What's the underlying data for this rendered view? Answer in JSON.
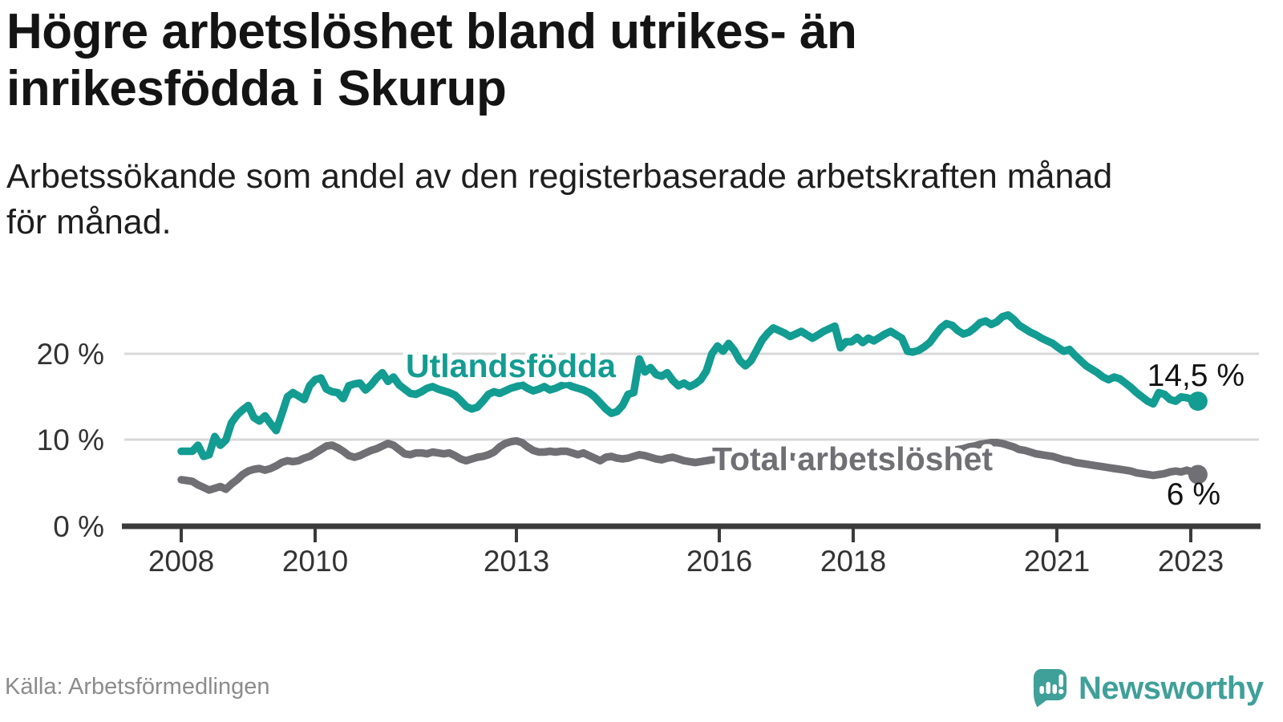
{
  "header": {
    "title_lines": [
      "Högre arbetslöshet bland utrikes- än",
      "inrikesfödda i Skurup"
    ],
    "subtitle_lines": [
      "Arbetssökande som andel av den registerbaserade arbetskraften månad",
      "för månad."
    ]
  },
  "footer": {
    "source": "Källa: Arbetsförmedlingen",
    "brand_name": "Newsworthy"
  },
  "colors": {
    "foreign_born_line": "#129c92",
    "total_line": "#6f6f74",
    "brand_teal": "#3fa099",
    "gridline": "#d8d8d8",
    "axis": "#3b3b3b"
  },
  "chart_data": {
    "type": "line",
    "title": "Högre arbetslöshet bland utrikes- än inrikesfödda i Skurup",
    "subtitle": "Arbetssökande som andel av den registerbaserade arbetskraften månad för månad.",
    "frequency": "monthly",
    "x_start": "2008-01",
    "x_end": "2023-03",
    "grid": "horizontal",
    "legend_position": "inline-labels",
    "ylim": [
      0,
      26
    ],
    "y_ticks": [
      {
        "label": "0 %",
        "value": 0
      },
      {
        "label": "10 %",
        "value": 10
      },
      {
        "label": "20 %",
        "value": 20
      }
    ],
    "x_ticks": [
      {
        "label": "2008",
        "year": 2008
      },
      {
        "label": "2010",
        "year": 2010
      },
      {
        "label": "2013",
        "year": 2013
      },
      {
        "label": "2016",
        "year": 2016
      },
      {
        "label": "2018",
        "year": 2018
      },
      {
        "label": "2021",
        "year": 2021
      },
      {
        "label": "2023",
        "year": 2023
      }
    ],
    "series": [
      {
        "id": "utlandsfodda",
        "name": "Utlandsfödda",
        "color": "#129c92",
        "end_label": "14,5 %",
        "end_value": 14.5,
        "values": [
          8.7,
          8.7,
          8.7,
          9.4,
          8.1,
          8.3,
          10.4,
          9.4,
          10.0,
          12.0,
          12.9,
          13.5,
          14.0,
          12.6,
          12.2,
          12.8,
          11.9,
          11.1,
          13.0,
          15.0,
          15.5,
          15.1,
          14.7,
          16.3,
          17.0,
          17.2,
          15.9,
          15.6,
          15.5,
          14.8,
          16.3,
          16.5,
          16.6,
          15.8,
          16.4,
          17.2,
          17.8,
          16.8,
          17.3,
          16.4,
          15.9,
          15.4,
          15.3,
          15.6,
          16.0,
          16.2,
          15.9,
          15.7,
          15.5,
          15.2,
          14.6,
          13.9,
          13.6,
          13.8,
          14.5,
          15.3,
          15.6,
          15.4,
          15.7,
          16.0,
          16.2,
          16.4,
          16.0,
          15.7,
          15.9,
          16.2,
          15.8,
          16.0,
          16.3,
          16.5,
          16.2,
          16.0,
          15.8,
          15.5,
          15.0,
          14.3,
          13.6,
          13.1,
          13.3,
          14.0,
          15.3,
          15.5,
          19.4,
          17.9,
          18.4,
          17.6,
          17.4,
          17.8,
          16.9,
          16.3,
          16.6,
          16.2,
          16.5,
          17.0,
          18.0,
          20.0,
          20.9,
          20.3,
          21.2,
          20.4,
          19.2,
          18.6,
          19.2,
          20.4,
          21.6,
          22.4,
          23.0,
          22.7,
          22.4,
          22.0,
          22.3,
          22.6,
          22.2,
          21.8,
          22.2,
          22.6,
          22.9,
          23.2,
          20.7,
          21.4,
          21.4,
          21.9,
          21.3,
          21.8,
          21.5,
          21.9,
          22.3,
          22.6,
          22.2,
          21.8,
          20.3,
          20.2,
          20.4,
          20.8,
          21.3,
          22.2,
          23.0,
          23.5,
          23.3,
          22.7,
          22.3,
          22.5,
          23.0,
          23.6,
          23.8,
          23.4,
          23.7,
          24.3,
          24.5,
          24.0,
          23.3,
          22.9,
          22.5,
          22.2,
          21.8,
          21.5,
          21.2,
          20.7,
          20.3,
          20.5,
          19.8,
          19.2,
          18.6,
          18.2,
          17.8,
          17.3,
          17.0,
          17.3,
          17.1,
          16.6,
          16.1,
          15.5,
          15.0,
          14.5,
          14.2,
          15.5,
          15.3,
          14.7,
          14.5,
          15.0,
          14.9,
          14.7,
          14.5
        ]
      },
      {
        "id": "total",
        "name": "Total arbetslöshet",
        "color": "#6f6f74",
        "end_label": "6 %",
        "end_value": 6,
        "values": [
          5.4,
          5.3,
          5.2,
          4.8,
          4.5,
          4.2,
          4.4,
          4.6,
          4.3,
          4.9,
          5.4,
          6.0,
          6.4,
          6.6,
          6.7,
          6.5,
          6.7,
          7.0,
          7.4,
          7.6,
          7.5,
          7.6,
          7.9,
          8.1,
          8.5,
          8.9,
          9.3,
          9.4,
          9.1,
          8.7,
          8.2,
          8.0,
          8.2,
          8.5,
          8.8,
          9.0,
          9.3,
          9.6,
          9.4,
          8.9,
          8.4,
          8.3,
          8.5,
          8.5,
          8.4,
          8.6,
          8.5,
          8.4,
          8.5,
          8.2,
          7.8,
          7.6,
          7.8,
          8.0,
          8.1,
          8.3,
          8.6,
          9.2,
          9.6,
          9.8,
          9.9,
          9.7,
          9.2,
          8.8,
          8.6,
          8.6,
          8.7,
          8.6,
          8.7,
          8.7,
          8.5,
          8.3,
          8.5,
          8.2,
          7.9,
          7.6,
          8.0,
          8.1,
          7.9,
          7.8,
          7.9,
          8.1,
          8.3,
          8.2,
          8.0,
          7.8,
          7.7,
          7.9,
          8.0,
          7.8,
          7.6,
          7.5,
          7.4,
          7.5,
          7.6,
          7.7,
          7.8,
          7.9,
          8.0,
          7.9,
          7.8,
          7.7,
          7.8,
          7.9,
          8.0,
          8.1,
          8.2,
          8.2,
          8.2,
          8.1,
          8.0,
          7.9,
          7.8,
          7.7,
          7.8,
          7.9,
          8.0,
          8.0,
          7.9,
          7.8,
          7.8,
          7.7,
          7.6,
          7.5,
          7.4,
          7.4,
          7.5,
          7.6,
          7.6,
          7.5,
          7.4,
          7.4,
          7.6,
          7.8,
          8.0,
          8.2,
          8.4,
          8.5,
          8.7,
          8.9,
          9.0,
          9.2,
          9.3,
          9.5,
          9.6,
          9.7,
          9.7,
          9.6,
          9.4,
          9.2,
          8.9,
          8.8,
          8.6,
          8.4,
          8.3,
          8.2,
          8.1,
          7.9,
          7.7,
          7.6,
          7.4,
          7.3,
          7.2,
          7.1,
          7.0,
          6.9,
          6.8,
          6.7,
          6.6,
          6.5,
          6.4,
          6.2,
          6.1,
          6.0,
          5.9,
          6.0,
          6.1,
          6.3,
          6.4,
          6.3,
          6.5,
          6.3,
          6.0
        ]
      }
    ]
  }
}
